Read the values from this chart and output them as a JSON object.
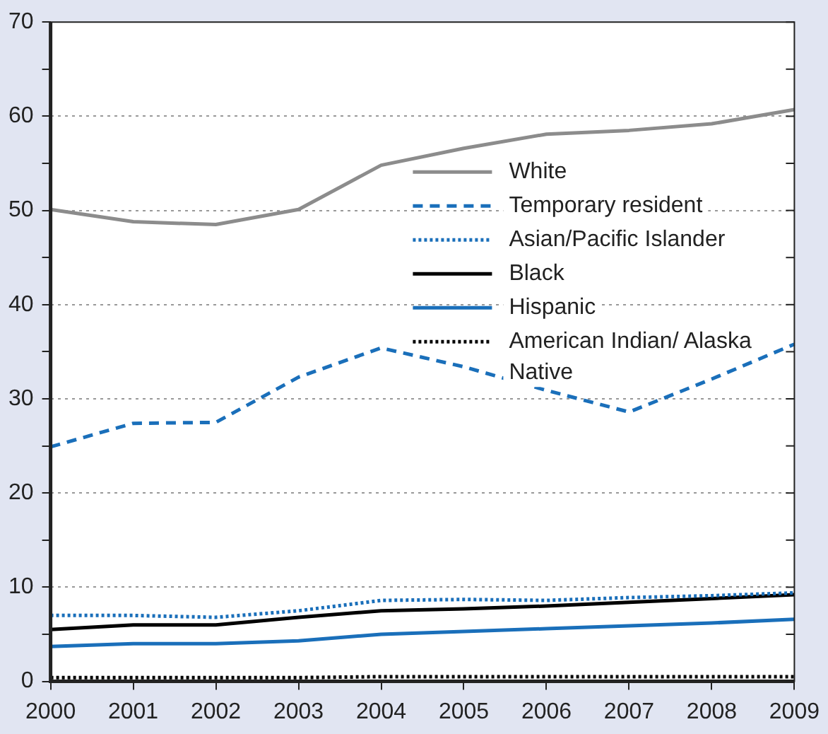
{
  "chart_data": {
    "type": "line",
    "categories": [
      "2000",
      "2001",
      "2002",
      "2003",
      "2004",
      "2005",
      "2006",
      "2007",
      "2008",
      "2009"
    ],
    "series": [
      {
        "name": "White",
        "color": "#8c8c8c",
        "line_style": "solid",
        "values": [
          50.1,
          48.8,
          48.5,
          50.1,
          54.8,
          56.6,
          58.1,
          58.5,
          59.2,
          60.7
        ]
      },
      {
        "name": "Temporary resident",
        "color": "#1a6fba",
        "line_style": "dashed",
        "values": [
          24.9,
          27.4,
          27.5,
          32.3,
          35.4,
          33.4,
          30.9,
          28.6,
          32.1,
          35.8
        ]
      },
      {
        "name": "Asian/Pacific Islander",
        "color": "#1a6fba",
        "line_style": "dotted",
        "values": [
          7.0,
          7.0,
          6.8,
          7.5,
          8.6,
          8.7,
          8.6,
          8.9,
          9.1,
          9.4
        ]
      },
      {
        "name": "Black",
        "color": "#000000",
        "line_style": "solid",
        "values": [
          5.5,
          6.0,
          6.0,
          6.8,
          7.5,
          7.7,
          8.0,
          8.4,
          8.8,
          9.2
        ]
      },
      {
        "name": "Hispanic",
        "color": "#1a6fba",
        "line_style": "solid",
        "values": [
          3.7,
          4.0,
          4.0,
          4.3,
          5.0,
          5.3,
          5.6,
          5.9,
          6.2,
          6.6
        ]
      },
      {
        "name": "American Indian/ Alaska Native",
        "color": "#000000",
        "line_style": "dotted",
        "values": [
          0.4,
          0.4,
          0.4,
          0.4,
          0.5,
          0.5,
          0.5,
          0.5,
          0.5,
          0.5
        ]
      }
    ],
    "ylim": [
      0,
      70
    ],
    "yticks": [
      0,
      {
        "value": 5,
        "label": null
      },
      10,
      {
        "value": 15,
        "label": null
      },
      20,
      {
        "value": 25,
        "label": null
      },
      30,
      {
        "value": 35,
        "label": null
      },
      40,
      {
        "value": 45,
        "label": null
      },
      50,
      {
        "value": 55,
        "label": null
      },
      60,
      {
        "value": 65,
        "label": null
      },
      70
    ],
    "grid": "y",
    "legend": "top right",
    "marker": "none"
  }
}
